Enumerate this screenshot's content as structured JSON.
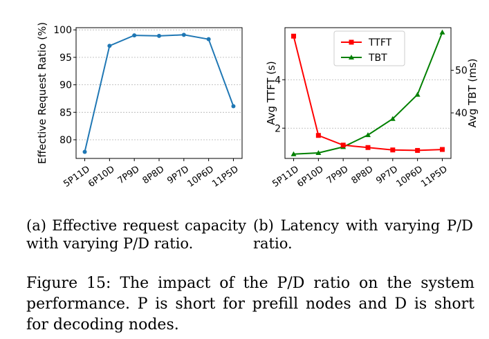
{
  "chart_data": [
    {
      "type": "line",
      "title": "",
      "xlabel": "",
      "ylabel": "Effective Request Ratio (%)",
      "categories": [
        "5P11D",
        "6P10D",
        "7P9D",
        "8P8D",
        "9P7D",
        "10P6D",
        "11P5D"
      ],
      "series": [
        {
          "name": "Effective Request Ratio",
          "values": [
            77.8,
            97.1,
            99.0,
            98.9,
            99.1,
            98.3,
            86.1
          ],
          "color": "#1f77b4"
        }
      ],
      "ylim": [
        76.6,
        100.4
      ],
      "yticks": [
        80,
        85,
        90,
        95,
        100
      ],
      "grid": true
    },
    {
      "type": "line",
      "title": "",
      "xlabel": "",
      "ylabel": "Avg TTFT (s)",
      "y2label": "Avg TBT (ms)",
      "categories": [
        "5P11D",
        "6P10D",
        "7P9D",
        "8P8D",
        "9P7D",
        "10P6D",
        "11P5D"
      ],
      "series": [
        {
          "name": "TTFT",
          "axis": "left",
          "marker": "square",
          "color": "#ff0000",
          "values": [
            5.8,
            1.7,
            1.3,
            1.2,
            1.1,
            1.08,
            1.12
          ]
        },
        {
          "name": "TBT",
          "axis": "right",
          "marker": "triangle",
          "color": "#008000",
          "values": [
            30.3,
            30.6,
            32.0,
            34.8,
            38.6,
            44.3,
            58.9
          ]
        }
      ],
      "ylim": [
        0.75,
        6.15
      ],
      "y2lim": [
        29.3,
        60.0
      ],
      "yticks": [
        2,
        4
      ],
      "y2ticks": [
        40,
        50
      ],
      "grid": true,
      "legend": "top-center"
    }
  ],
  "captions": {
    "sub_a": "(a) Effective request capacity with varying P/D ratio.",
    "sub_b": "(b) Latency with varying P/D ratio.",
    "figure": "Figure 15: The impact of the P/D ratio on the system performance. P is short for prefill nodes and D is short for decoding nodes."
  }
}
